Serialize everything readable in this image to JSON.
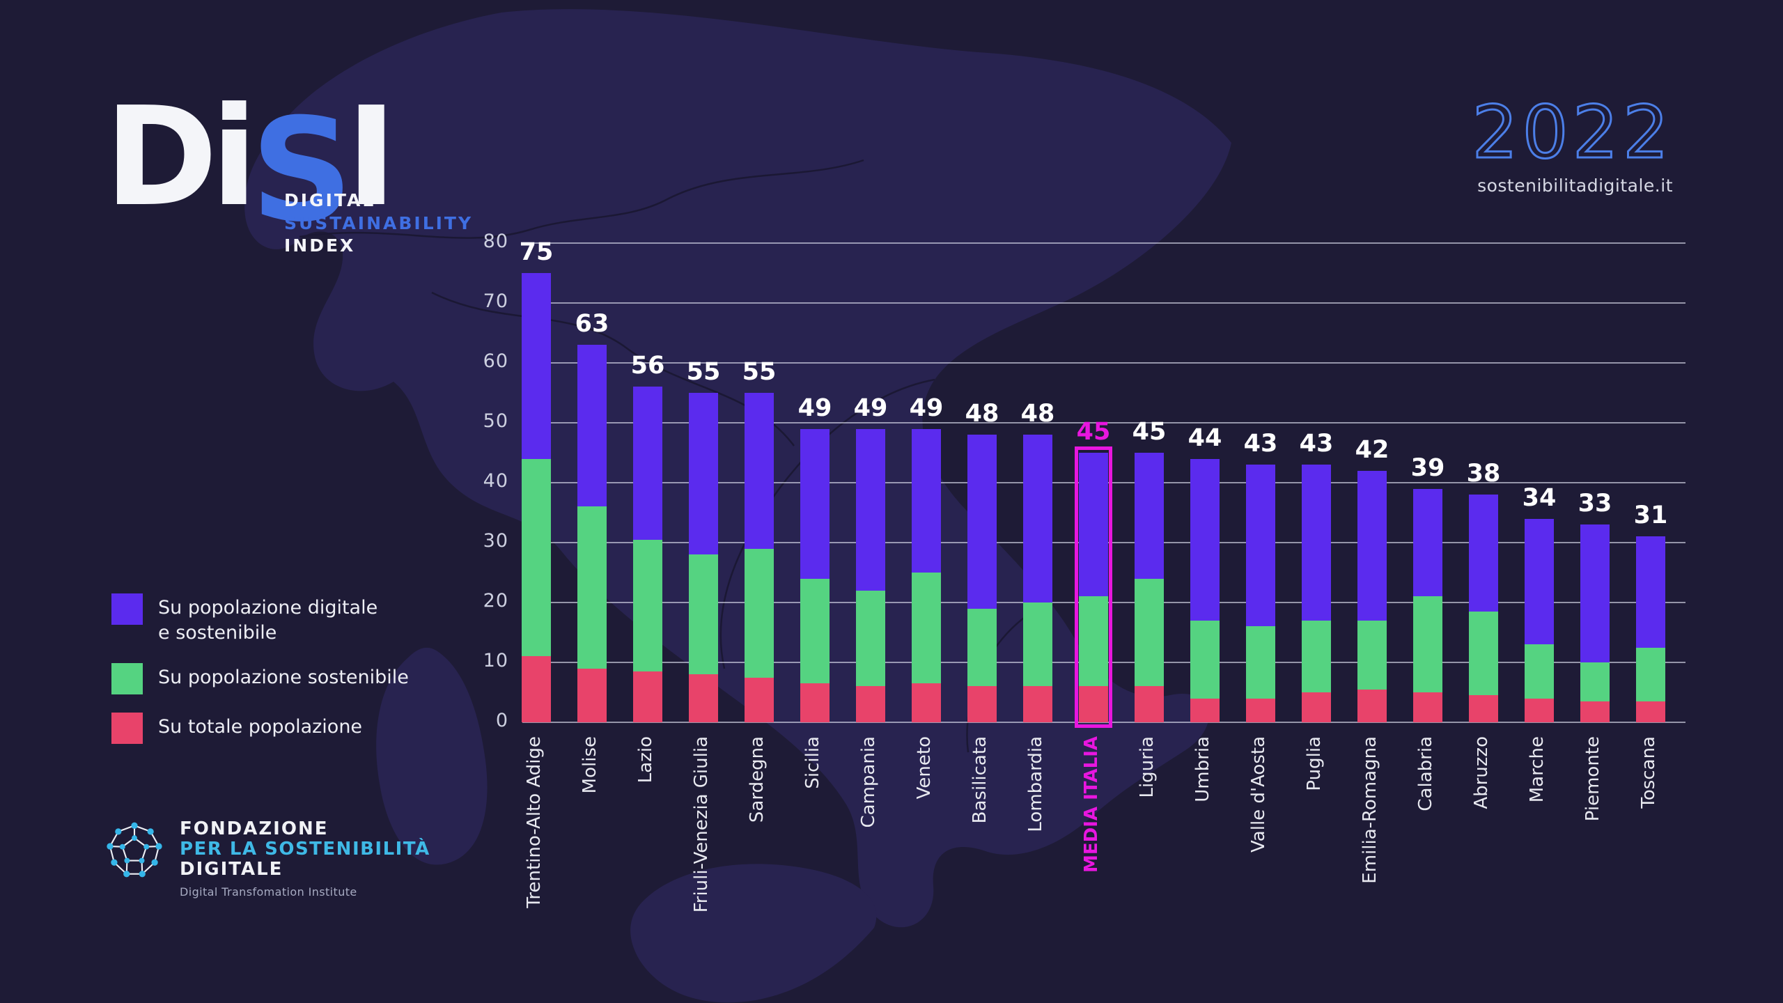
{
  "colors": {
    "background": "#1E1B36",
    "map_fill": "#282350",
    "map_line": "#1B1834",
    "accent_blue": "#3F6FE2",
    "accent_blue_light": "#4C7FE8",
    "cyan": "#3FB9E6",
    "magenta": "#E816DF",
    "purple": "#5B2BEE",
    "green": "#55D381",
    "red": "#E8436A"
  },
  "brand": {
    "word_d": "D",
    "word_i": "i",
    "word_s": "S",
    "word_l": "I",
    "sub1": "DIGITAL",
    "sub2": "SUSTAINABILITY",
    "sub3": "INDEX"
  },
  "header_right": {
    "year": "2022",
    "site": "sostenibilitadigitale.it"
  },
  "legend": {
    "items": [
      {
        "label": "Su popolazione digitale\ne sostenibile",
        "color": "#5B2BEE"
      },
      {
        "label": "Su popolazione sostenibile",
        "color": "#55D381"
      },
      {
        "label": "Su totale popolazione",
        "color": "#E8436A"
      }
    ]
  },
  "footer_brand": {
    "line1": "FONDAZIONE",
    "line2": "PER LA SOSTENIBILITÀ",
    "line3": "DIGITALE",
    "tagline": "Digital Transfomation Institute"
  },
  "chart_data": {
    "type": "bar",
    "stacked_overlay": true,
    "note": "each series value is the cumulative top (from 0) of that colored band; later series are drawn over earlier ones",
    "ylim": [
      0,
      80
    ],
    "yticks": [
      0,
      10,
      20,
      30,
      40,
      50,
      60,
      70,
      80
    ],
    "grid": "horizontal",
    "legend_position": "left",
    "categories": [
      "Trentino-Alto Adige",
      "Molise",
      "Lazio",
      "Friuli-Venezia Giulia",
      "Sardegna",
      "Sicilia",
      "Campania",
      "Veneto",
      "Basilicata",
      "Lombardia",
      "MEDIA ITALIA",
      "Liguria",
      "Umbria",
      "Valle d'Aosta",
      "Puglia",
      "Emilia-Romagna",
      "Calabria",
      "Abruzzo",
      "Marche",
      "Piemonte",
      "Toscana"
    ],
    "bar_labels": [
      75,
      63,
      56,
      55,
      55,
      49,
      49,
      49,
      48,
      48,
      45,
      45,
      44,
      43,
      43,
      42,
      39,
      38,
      34,
      33,
      31
    ],
    "series": [
      {
        "name": "Su popolazione digitale e sostenibile",
        "color": "#5B2BEE",
        "values": [
          75,
          63,
          56,
          55,
          55,
          49,
          49,
          49,
          48,
          48,
          45,
          45,
          44,
          43,
          43,
          42,
          39,
          38,
          34,
          33,
          31
        ]
      },
      {
        "name": "Su popolazione sostenibile",
        "color": "#55D381",
        "values": [
          44,
          36,
          30.5,
          28,
          29,
          24,
          22,
          25,
          19,
          20,
          21,
          24,
          17,
          16,
          17,
          17,
          21,
          18.5,
          13,
          10,
          12.5
        ]
      },
      {
        "name": "Su totale popolazione",
        "color": "#E8436A",
        "values": [
          11,
          9,
          8.5,
          8,
          7.5,
          6.5,
          6,
          6.5,
          6,
          6,
          6,
          6,
          4,
          4,
          5,
          5.5,
          5,
          4.5,
          4,
          3.5,
          3.5
        ]
      }
    ],
    "highlight": {
      "index": 10,
      "label": "MEDIA ITALIA",
      "color": "#E816DF"
    }
  }
}
